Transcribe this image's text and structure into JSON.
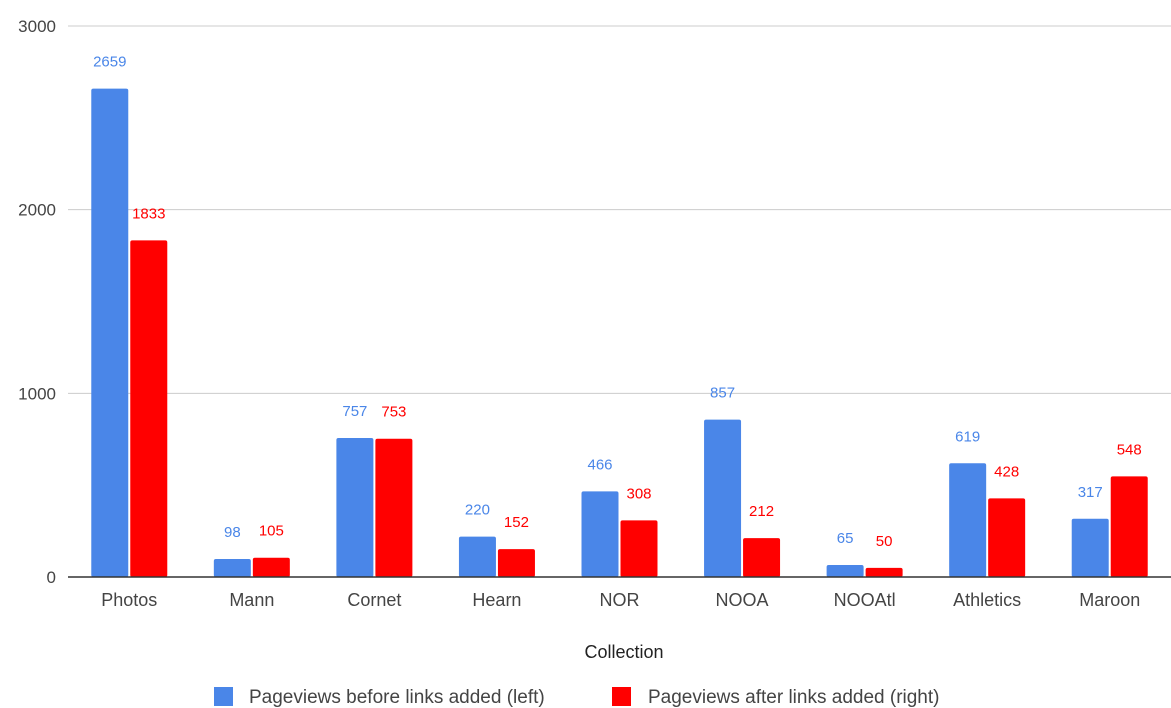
{
  "chart_data": {
    "type": "bar",
    "title": "",
    "xlabel": "Collection",
    "ylabel": "",
    "ylim": [
      0,
      3000
    ],
    "yticks": [
      "0",
      "1000",
      "2000",
      "3000"
    ],
    "grid": true,
    "legend_position": "bottom",
    "categories": [
      "Photos",
      "Mann",
      "Cornet",
      "Hearn",
      "NOR",
      "NOOA",
      "NOOAtl",
      "Athletics",
      "Maroon"
    ],
    "series": [
      {
        "name": "Pageviews before links added (left)",
        "color": "#4a86e8",
        "values": [
          2659,
          98,
          757,
          220,
          466,
          857,
          65,
          619,
          317
        ]
      },
      {
        "name": "Pageviews after links added (right)",
        "color": "#ff0000",
        "values": [
          1833,
          105,
          753,
          152,
          308,
          212,
          50,
          428,
          548
        ]
      }
    ]
  }
}
